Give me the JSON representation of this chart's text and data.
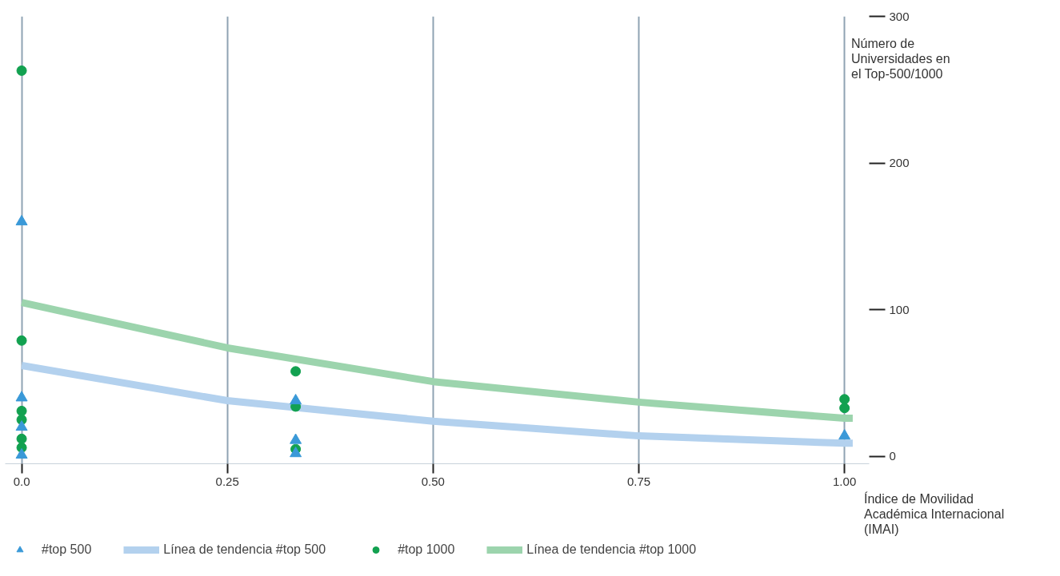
{
  "chart_data": {
    "type": "scatter",
    "xlabel": "Índice de Movilidad Académica Internacional (IMAI)",
    "ylabel": "Número de Universidades en el Top-500/1000",
    "xlim": [
      -0.02,
      1.03
    ],
    "ylim": [
      -5,
      300
    ],
    "xticks": [
      {
        "value": 0,
        "label": "0.0"
      },
      0.25,
      {
        "value": 0.5,
        "label": "0.50"
      },
      0.75,
      {
        "value": 1,
        "label": "1.00"
      }
    ],
    "yticks": [
      0,
      100,
      200,
      300
    ],
    "grid": "x",
    "legend": "bottom",
    "series": [
      {
        "name": "#top 500",
        "marker": "triangle",
        "color": "#3a99d8",
        "x": [
          0,
          0,
          0,
          0,
          0.333,
          0.333,
          0.333,
          1
        ],
        "values": [
          160,
          40,
          20,
          1,
          38,
          11,
          2,
          14
        ]
      },
      {
        "name": "Línea de tendencia #top 500",
        "type": "line",
        "color": "#b3d1ee",
        "x": [
          0,
          0.25,
          0.5,
          0.75,
          1,
          1.01
        ],
        "values": [
          62,
          38,
          24,
          14,
          9,
          9
        ]
      },
      {
        "name": "#top 1000",
        "marker": "circle",
        "color": "#12a150",
        "x": [
          0,
          0,
          0,
          0,
          0,
          0,
          0.333,
          0.333,
          0.333,
          1,
          1
        ],
        "values": [
          263,
          79,
          31,
          25,
          12,
          6,
          58,
          34,
          5,
          39,
          33
        ]
      },
      {
        "name": "Línea de tendencia #top 1000",
        "type": "line",
        "color": "#9cd4ad",
        "x": [
          0,
          0.25,
          0.5,
          0.75,
          1,
          1.01
        ],
        "values": [
          105,
          74,
          51,
          37,
          26,
          26
        ]
      }
    ]
  }
}
